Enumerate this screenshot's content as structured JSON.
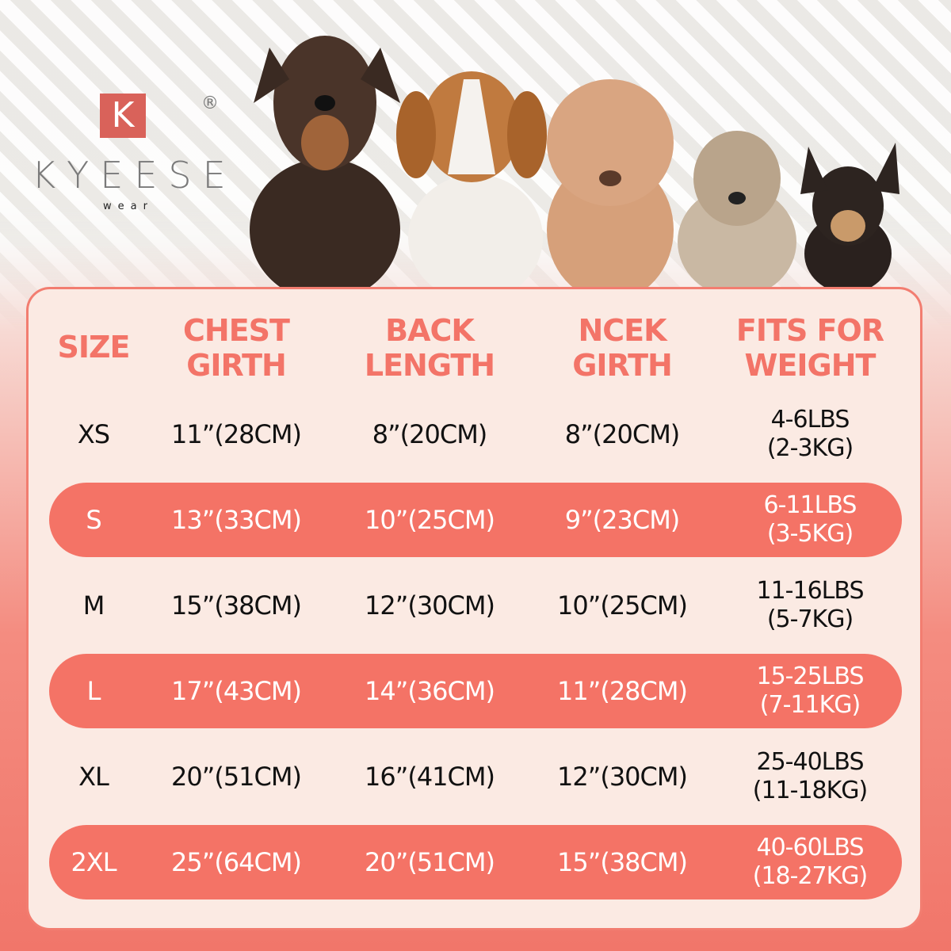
{
  "brand": {
    "logo_letter": "K",
    "name": "KYEESE",
    "sub": "wear",
    "registered": "®",
    "accent": "#d9625a"
  },
  "colors": {
    "header_text": "#f37468",
    "highlight_row": "#f47366",
    "card_bg": "#fbeae3"
  },
  "table": {
    "headers": [
      [
        "SIZE"
      ],
      [
        "CHEST",
        "GIRTH"
      ],
      [
        "BACK",
        "LENGTH"
      ],
      [
        "NCEK",
        "GIRTH"
      ],
      [
        "FITS FOR",
        "WEIGHT"
      ]
    ],
    "rows": [
      {
        "size": "XS",
        "chest": "11”(28CM)",
        "back": "8”(20CM)",
        "neck": "8”(20CM)",
        "weight": [
          "4-6LBS",
          "(2-3KG)"
        ],
        "highlight": false
      },
      {
        "size": "S",
        "chest": "13”(33CM)",
        "back": "10”(25CM)",
        "neck": "9”(23CM)",
        "weight": [
          "6-11LBS",
          "(3-5KG)"
        ],
        "highlight": true
      },
      {
        "size": "M",
        "chest": "15”(38CM)",
        "back": "12”(30CM)",
        "neck": "10”(25CM)",
        "weight": [
          "11-16LBS",
          "(5-7KG)"
        ],
        "highlight": false
      },
      {
        "size": "L",
        "chest": "17”(43CM)",
        "back": "14”(36CM)",
        "neck": "11”(28CM)",
        "weight": [
          "15-25LBS",
          "(7-11KG)"
        ],
        "highlight": true
      },
      {
        "size": "XL",
        "chest": "20”(51CM)",
        "back": "16”(41CM)",
        "neck": "12”(30CM)",
        "weight": [
          "25-40LBS",
          "(11-18KG)"
        ],
        "highlight": false
      },
      {
        "size": "2XL",
        "chest": "25”(64CM)",
        "back": "20”(51CM)",
        "neck": "15”(38CM)",
        "weight": [
          "40-60LBS",
          "(18-27KG)"
        ],
        "highlight": true
      }
    ]
  }
}
